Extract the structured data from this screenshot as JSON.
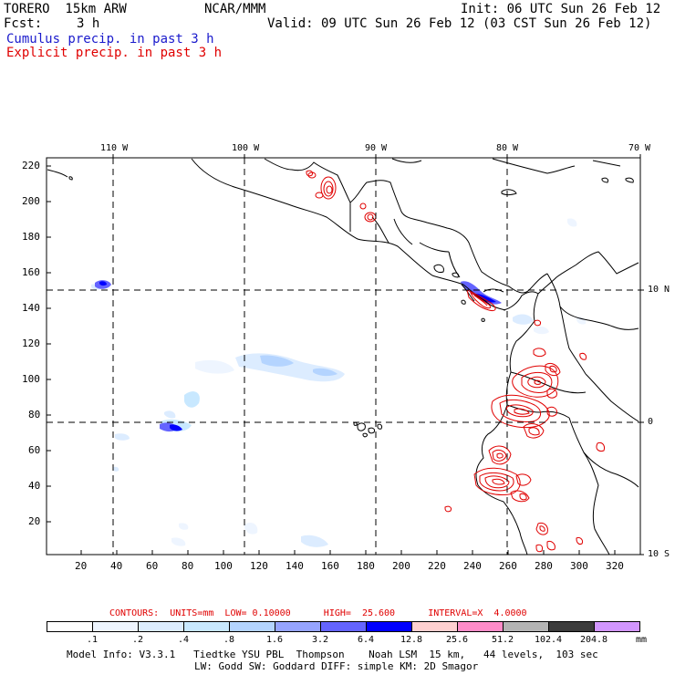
{
  "header": {
    "model": "TORERO  15km ARW",
    "org": "NCAR/MMM",
    "init": "Init: 06 UTC Sun 26 Feb 12",
    "fcst_label": "Fcst:",
    "fcst_value": "3 h",
    "valid": "Valid: 09 UTC Sun 26 Feb 12 (03 CST Sun 26 Feb 12)",
    "cumulus": "Cumulus precip. in past 3 h",
    "explicit": "Explicit precip. in past 3 h"
  },
  "colors": {
    "cumulus_title": "#1a1acc",
    "explicit_title": "#e00000",
    "contour": "#e00000",
    "land_outline": "#000000"
  },
  "map": {
    "top_labels": [
      "110 W",
      "100 W",
      "90 W",
      "80 W",
      "70 W"
    ],
    "right_labels": [
      "10 N",
      "0",
      "10 S"
    ],
    "y_ticks": [
      "220",
      "200",
      "180",
      "160",
      "140",
      "120",
      "100",
      "80",
      "60",
      "40",
      "20"
    ],
    "x_ticks": [
      "20",
      "40",
      "60",
      "80",
      "100",
      "120",
      "140",
      "160",
      "180",
      "200",
      "220",
      "240",
      "260",
      "280",
      "300",
      "320"
    ]
  },
  "legend": {
    "contours_caption": "CONTOURS:  UNITS=mm  LOW= 0.10000      HIGH=  25.600      INTERVAL=X  4.0000",
    "units": "mm",
    "bins": [
      {
        "label": ".1",
        "color": "#ffffff"
      },
      {
        "label": ".2",
        "color": "#eef5ff"
      },
      {
        "label": ".4",
        "color": "#dcecff"
      },
      {
        "label": ".8",
        "color": "#c8e8ff"
      },
      {
        "label": "1.6",
        "color": "#b4d4ff"
      },
      {
        "label": "3.2",
        "color": "#96a4ff"
      },
      {
        "label": "6.4",
        "color": "#6464ff"
      },
      {
        "label": "12.8",
        "color": "#0000ff"
      },
      {
        "label": "25.6",
        "color": "#ffd0d0"
      },
      {
        "label": "51.2",
        "color": "#ff8cc8"
      },
      {
        "label": "102.4",
        "color": "#b4b4b4"
      },
      {
        "label": "204.8",
        "color": "#3c3c3c"
      },
      {
        "label": "",
        "color": "#d296ff"
      }
    ]
  },
  "footer": {
    "line1": "Model Info: V3.3.1   Tiedtke YSU PBL  Thompson    Noah LSM  15 km,   44 levels,  103 sec",
    "line2": "LW: Godd SW: Goddard DIFF: simple KM: 2D Smagor"
  }
}
